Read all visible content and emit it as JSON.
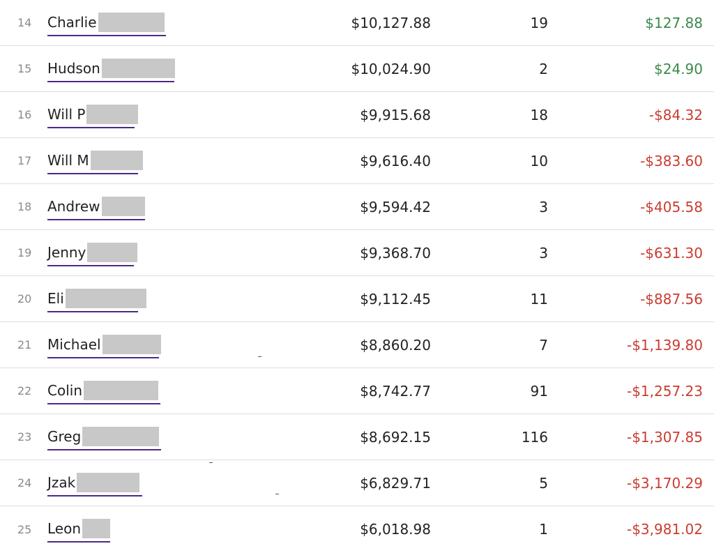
{
  "leaderboard": {
    "rows": [
      {
        "rank": "14",
        "name": "Charlie",
        "balance": "$10,127.88",
        "trades": "19",
        "pnl": "$127.88",
        "pnl_sign": "positive"
      },
      {
        "rank": "15",
        "name": "Hudson",
        "balance": "$10,024.90",
        "trades": "2",
        "pnl": "$24.90",
        "pnl_sign": "positive"
      },
      {
        "rank": "16",
        "name": "Will P",
        "balance": "$9,915.68",
        "trades": "18",
        "pnl": "-$84.32",
        "pnl_sign": "negative"
      },
      {
        "rank": "17",
        "name": "Will M",
        "balance": "$9,616.40",
        "trades": "10",
        "pnl": "-$383.60",
        "pnl_sign": "negative"
      },
      {
        "rank": "18",
        "name": "Andrew",
        "balance": "$9,594.42",
        "trades": "3",
        "pnl": "-$405.58",
        "pnl_sign": "negative"
      },
      {
        "rank": "19",
        "name": "Jenny",
        "balance": "$9,368.70",
        "trades": "3",
        "pnl": "-$631.30",
        "pnl_sign": "negative"
      },
      {
        "rank": "20",
        "name": "Eli",
        "balance": "$9,112.45",
        "trades": "11",
        "pnl": "-$887.56",
        "pnl_sign": "negative"
      },
      {
        "rank": "21",
        "name": "Michael",
        "balance": "$8,860.20",
        "trades": "7",
        "pnl": "-$1,139.80",
        "pnl_sign": "negative"
      },
      {
        "rank": "22",
        "name": "Colin",
        "balance": "$8,742.77",
        "trades": "91",
        "pnl": "-$1,257.23",
        "pnl_sign": "negative"
      },
      {
        "rank": "23",
        "name": "Greg",
        "balance": "$8,692.15",
        "trades": "116",
        "pnl": "-$1,307.85",
        "pnl_sign": "negative"
      },
      {
        "rank": "24",
        "name": "Jzak",
        "balance": "$6,829.71",
        "trades": "5",
        "pnl": "-$3,170.29",
        "pnl_sign": "negative"
      },
      {
        "rank": "25",
        "name": "Leon",
        "balance": "$6,018.98",
        "trades": "1",
        "pnl": "-$3,981.02",
        "pnl_sign": "negative"
      }
    ]
  },
  "colors": {
    "positive": "#3a8a4a",
    "negative": "#cc3b30",
    "link_underline": "#4a2a8a",
    "redaction": "#c8c8c8"
  }
}
